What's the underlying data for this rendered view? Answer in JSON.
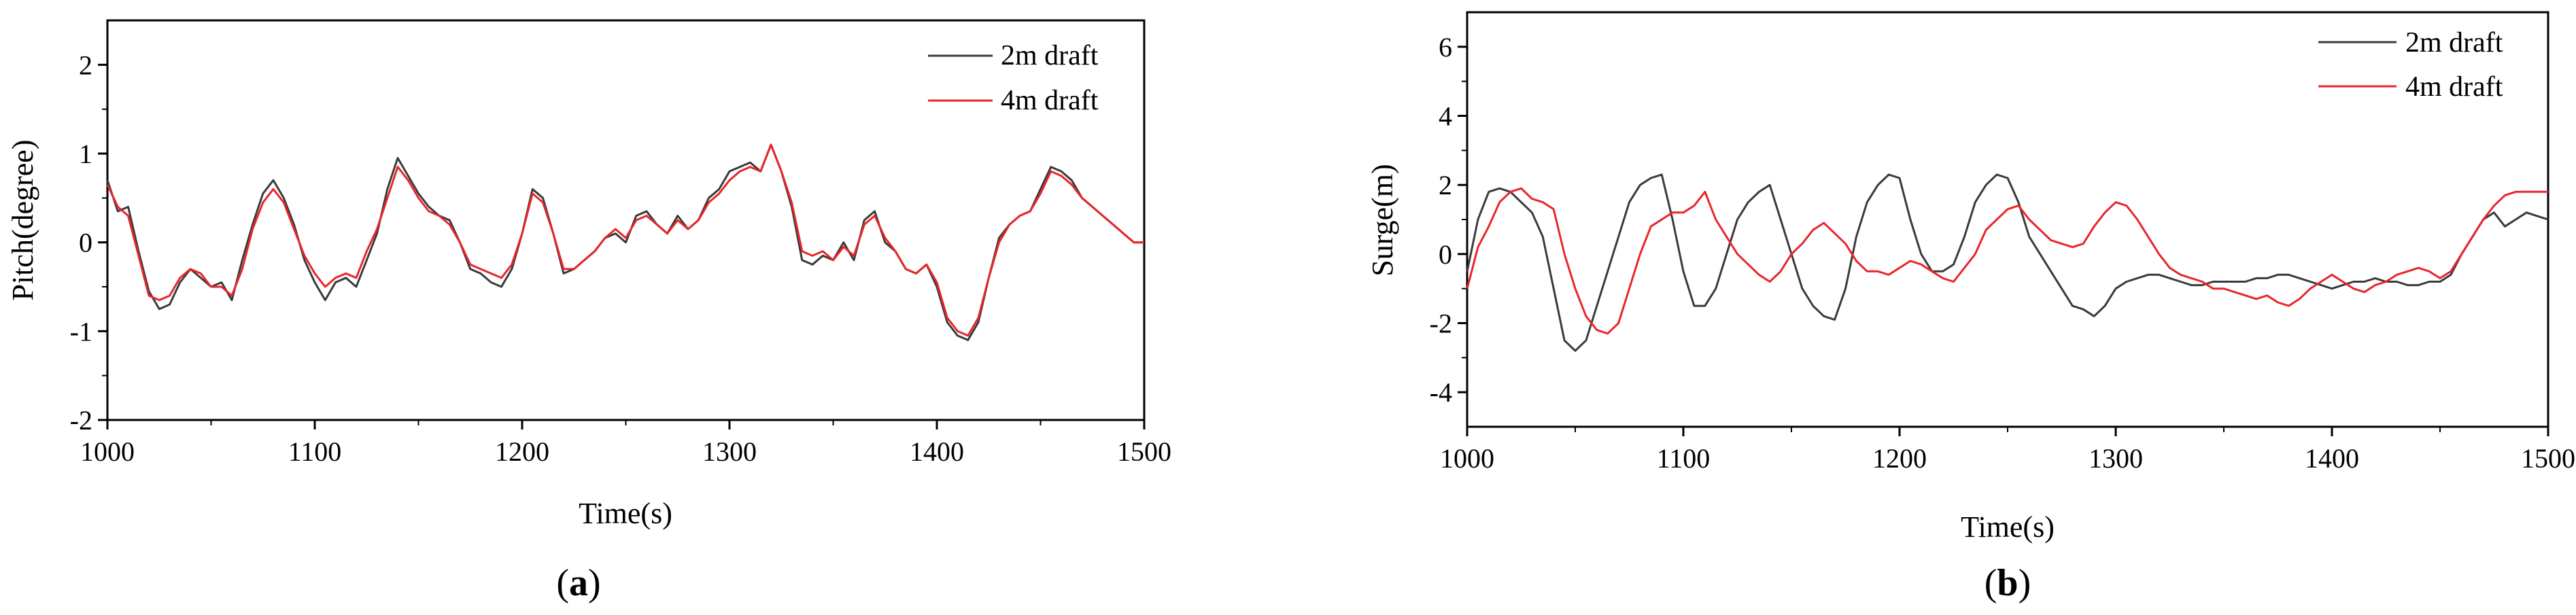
{
  "colors": {
    "black_series": "#3a3a3a",
    "red_series": "#e8262b",
    "axis": "#000000"
  },
  "chart_data": [
    {
      "panel_label": "a",
      "type": "line",
      "xlabel": "Time(s)",
      "ylabel": "Pitch(degree)",
      "xlim": [
        1000,
        1500
      ],
      "ylim": [
        -2,
        2.5
      ],
      "xticks": [
        1000,
        1100,
        1200,
        1300,
        1400,
        1500
      ],
      "yticks": [
        -2,
        -1,
        0,
        1,
        2
      ],
      "grid": false,
      "legend_position": "top-right",
      "x": [
        1000,
        1005,
        1010,
        1015,
        1020,
        1025,
        1030,
        1035,
        1040,
        1045,
        1050,
        1055,
        1060,
        1065,
        1070,
        1075,
        1080,
        1085,
        1090,
        1095,
        1100,
        1105,
        1110,
        1115,
        1120,
        1125,
        1130,
        1135,
        1140,
        1145,
        1150,
        1155,
        1160,
        1165,
        1170,
        1175,
        1180,
        1185,
        1190,
        1195,
        1200,
        1205,
        1210,
        1215,
        1220,
        1225,
        1230,
        1235,
        1240,
        1245,
        1250,
        1255,
        1260,
        1265,
        1270,
        1275,
        1280,
        1285,
        1290,
        1295,
        1300,
        1305,
        1310,
        1315,
        1320,
        1325,
        1330,
        1335,
        1340,
        1345,
        1350,
        1355,
        1360,
        1365,
        1370,
        1375,
        1380,
        1385,
        1390,
        1395,
        1400,
        1405,
        1410,
        1415,
        1420,
        1425,
        1430,
        1435,
        1440,
        1445,
        1450,
        1455,
        1460,
        1465,
        1470,
        1475,
        1480,
        1485,
        1490,
        1495,
        1500
      ],
      "series": [
        {
          "name": "2m draft",
          "color": "#3a3a3a",
          "values": [
            0.7,
            0.35,
            0.4,
            -0.1,
            -0.55,
            -0.75,
            -0.7,
            -0.45,
            -0.3,
            -0.4,
            -0.5,
            -0.45,
            -0.65,
            -0.2,
            0.2,
            0.55,
            0.7,
            0.5,
            0.2,
            -0.2,
            -0.45,
            -0.65,
            -0.45,
            -0.4,
            -0.5,
            -0.2,
            0.1,
            0.6,
            0.95,
            0.75,
            0.55,
            0.4,
            0.3,
            0.25,
            0.0,
            -0.3,
            -0.35,
            -0.45,
            -0.5,
            -0.3,
            0.1,
            0.6,
            0.5,
            0.1,
            -0.35,
            -0.3,
            -0.2,
            -0.1,
            0.05,
            0.1,
            0.0,
            0.3,
            0.35,
            0.2,
            0.1,
            0.3,
            0.15,
            0.25,
            0.5,
            0.6,
            0.8,
            0.85,
            0.9,
            0.8,
            1.1,
            0.8,
            0.4,
            -0.2,
            -0.25,
            -0.15,
            -0.2,
            0.0,
            -0.2,
            0.25,
            0.35,
            0.0,
            -0.1,
            -0.3,
            -0.35,
            -0.25,
            -0.5,
            -0.9,
            -1.05,
            -1.1,
            -0.9,
            -0.4,
            0.05,
            0.2,
            0.3,
            0.35,
            0.6,
            0.85,
            0.8,
            0.7,
            0.5,
            0.4,
            0.3,
            0.2,
            0.1,
            0.0,
            0.0
          ]
        },
        {
          "name": "4m draft",
          "color": "#e8262b",
          "values": [
            0.65,
            0.4,
            0.3,
            -0.15,
            -0.6,
            -0.65,
            -0.6,
            -0.4,
            -0.3,
            -0.35,
            -0.5,
            -0.5,
            -0.6,
            -0.3,
            0.15,
            0.45,
            0.6,
            0.45,
            0.15,
            -0.15,
            -0.35,
            -0.5,
            -0.4,
            -0.35,
            -0.4,
            -0.1,
            0.15,
            0.5,
            0.85,
            0.7,
            0.5,
            0.35,
            0.3,
            0.2,
            0.0,
            -0.25,
            -0.3,
            -0.35,
            -0.4,
            -0.25,
            0.1,
            0.55,
            0.45,
            0.1,
            -0.3,
            -0.3,
            -0.2,
            -0.1,
            0.05,
            0.15,
            0.05,
            0.25,
            0.3,
            0.2,
            0.1,
            0.25,
            0.15,
            0.25,
            0.45,
            0.55,
            0.7,
            0.8,
            0.85,
            0.8,
            1.1,
            0.8,
            0.45,
            -0.1,
            -0.15,
            -0.1,
            -0.2,
            -0.05,
            -0.15,
            0.2,
            0.3,
            0.05,
            -0.1,
            -0.3,
            -0.35,
            -0.25,
            -0.45,
            -0.85,
            -1.0,
            -1.05,
            -0.85,
            -0.4,
            0.0,
            0.2,
            0.3,
            0.35,
            0.55,
            0.8,
            0.75,
            0.65,
            0.5,
            0.4,
            0.3,
            0.2,
            0.1,
            0.0,
            0.0
          ]
        }
      ]
    },
    {
      "panel_label": "b",
      "type": "line",
      "xlabel": "Time(s)",
      "ylabel": "Surge(m)",
      "xlim": [
        1000,
        1500
      ],
      "ylim": [
        -5,
        7
      ],
      "xticks": [
        1000,
        1100,
        1200,
        1300,
        1400,
        1500
      ],
      "yticks": [
        -4,
        -2,
        0,
        2,
        4,
        6
      ],
      "grid": false,
      "legend_position": "top-right",
      "x": [
        1000,
        1005,
        1010,
        1015,
        1020,
        1025,
        1030,
        1035,
        1040,
        1045,
        1050,
        1055,
        1060,
        1065,
        1070,
        1075,
        1080,
        1085,
        1090,
        1095,
        1100,
        1105,
        1110,
        1115,
        1120,
        1125,
        1130,
        1135,
        1140,
        1145,
        1150,
        1155,
        1160,
        1165,
        1170,
        1175,
        1180,
        1185,
        1190,
        1195,
        1200,
        1205,
        1210,
        1215,
        1220,
        1225,
        1230,
        1235,
        1240,
        1245,
        1250,
        1255,
        1260,
        1265,
        1270,
        1275,
        1280,
        1285,
        1290,
        1295,
        1300,
        1305,
        1310,
        1315,
        1320,
        1325,
        1330,
        1335,
        1340,
        1345,
        1350,
        1355,
        1360,
        1365,
        1370,
        1375,
        1380,
        1385,
        1390,
        1395,
        1400,
        1405,
        1410,
        1415,
        1420,
        1425,
        1430,
        1435,
        1440,
        1445,
        1450,
        1455,
        1460,
        1465,
        1470,
        1475,
        1480,
        1485,
        1490,
        1495,
        1500
      ],
      "series": [
        {
          "name": "2m draft",
          "color": "#3a3a3a",
          "values": [
            -0.5,
            1.0,
            1.8,
            1.9,
            1.8,
            1.5,
            1.2,
            0.5,
            -1.0,
            -2.5,
            -2.8,
            -2.5,
            -1.5,
            -0.5,
            0.5,
            1.5,
            2.0,
            2.2,
            2.3,
            1.0,
            -0.5,
            -1.5,
            -1.5,
            -1.0,
            0.0,
            1.0,
            1.5,
            1.8,
            2.0,
            1.0,
            0.0,
            -1.0,
            -1.5,
            -1.8,
            -1.9,
            -1.0,
            0.5,
            1.5,
            2.0,
            2.3,
            2.2,
            1.0,
            0.0,
            -0.5,
            -0.5,
            -0.3,
            0.5,
            1.5,
            2.0,
            2.3,
            2.2,
            1.5,
            0.5,
            0.0,
            -0.5,
            -1.0,
            -1.5,
            -1.6,
            -1.8,
            -1.5,
            -1.0,
            -0.8,
            -0.7,
            -0.6,
            -0.6,
            -0.7,
            -0.8,
            -0.9,
            -0.9,
            -0.8,
            -0.8,
            -0.8,
            -0.8,
            -0.7,
            -0.7,
            -0.6,
            -0.6,
            -0.7,
            -0.8,
            -0.9,
            -1.0,
            -0.9,
            -0.8,
            -0.8,
            -0.7,
            -0.8,
            -0.8,
            -0.9,
            -0.9,
            -0.8,
            -0.8,
            -0.6,
            0.0,
            0.5,
            1.0,
            1.2,
            0.8,
            1.0,
            1.2,
            1.1,
            1.0
          ]
        },
        {
          "name": "4m draft",
          "color": "#e8262b",
          "values": [
            -1.0,
            0.2,
            0.8,
            1.5,
            1.8,
            1.9,
            1.6,
            1.5,
            1.3,
            0.0,
            -1.0,
            -1.8,
            -2.2,
            -2.3,
            -2.0,
            -1.0,
            0.0,
            0.8,
            1.0,
            1.2,
            1.2,
            1.4,
            1.8,
            1.0,
            0.5,
            0.0,
            -0.3,
            -0.6,
            -0.8,
            -0.5,
            0.0,
            0.3,
            0.7,
            0.9,
            0.6,
            0.3,
            -0.2,
            -0.5,
            -0.5,
            -0.6,
            -0.4,
            -0.2,
            -0.3,
            -0.5,
            -0.7,
            -0.8,
            -0.4,
            0.0,
            0.7,
            1.0,
            1.3,
            1.4,
            1.0,
            0.7,
            0.4,
            0.3,
            0.2,
            0.3,
            0.8,
            1.2,
            1.5,
            1.4,
            1.0,
            0.5,
            0.0,
            -0.4,
            -0.6,
            -0.7,
            -0.8,
            -1.0,
            -1.0,
            -1.1,
            -1.2,
            -1.3,
            -1.2,
            -1.4,
            -1.5,
            -1.3,
            -1.0,
            -0.8,
            -0.6,
            -0.8,
            -1.0,
            -1.1,
            -0.9,
            -0.8,
            -0.6,
            -0.5,
            -0.4,
            -0.5,
            -0.7,
            -0.5,
            0.0,
            0.5,
            1.0,
            1.4,
            1.7,
            1.8,
            1.8,
            1.8,
            1.8
          ]
        }
      ]
    }
  ]
}
